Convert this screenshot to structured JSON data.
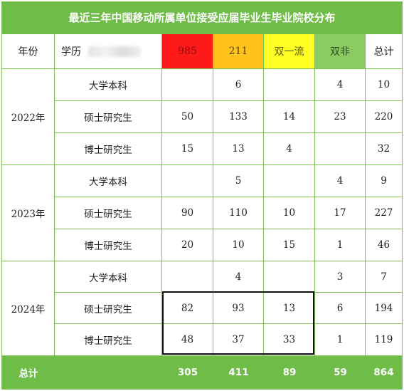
{
  "title": "最近三年中国移动所属单位接受应届毕业生毕业院校分布",
  "headers": {
    "year": "年份",
    "degree": "学历",
    "c985": "985",
    "c211": "211",
    "dual": "双一流",
    "nondual": "双非",
    "total": "总计"
  },
  "colors": {
    "accent_green": "#6fbd48",
    "c985": "#ff1a1a",
    "c211": "#ffc21a",
    "dual": "#ffff24",
    "nondual": "#8ccb64",
    "highlight_border": "#111111"
  },
  "groups": [
    {
      "year": "2022年",
      "rows": [
        {
          "degree": "大学本科",
          "c985": "",
          "c211": "6",
          "dual": "",
          "nondual": "4",
          "total": "10"
        },
        {
          "degree": "硕士研究生",
          "c985": "50",
          "c211": "133",
          "dual": "14",
          "nondual": "23",
          "total": "220"
        },
        {
          "degree": "博士研究生",
          "c985": "15",
          "c211": "13",
          "dual": "4",
          "nondual": "",
          "total": "32"
        }
      ]
    },
    {
      "year": "2023年",
      "rows": [
        {
          "degree": "大学本科",
          "c985": "",
          "c211": "5",
          "dual": "",
          "nondual": "4",
          "total": "9"
        },
        {
          "degree": "硕士研究生",
          "c985": "90",
          "c211": "110",
          "dual": "10",
          "nondual": "17",
          "total": "227"
        },
        {
          "degree": "博士研究生",
          "c985": "20",
          "c211": "10",
          "dual": "15",
          "nondual": "1",
          "total": "46"
        }
      ]
    },
    {
      "year": "2024年",
      "rows": [
        {
          "degree": "大学本科",
          "c985": "",
          "c211": "4",
          "dual": "",
          "nondual": "3",
          "total": "7"
        },
        {
          "degree": "硕士研究生",
          "c985": "82",
          "c211": "93",
          "dual": "13",
          "nondual": "6",
          "total": "194"
        },
        {
          "degree": "博士研究生",
          "c985": "48",
          "c211": "37",
          "dual": "33",
          "nondual": "1",
          "total": "119"
        }
      ]
    }
  ],
  "footer": {
    "label": "总计",
    "c985": "305",
    "c211": "411",
    "dual": "89",
    "nondual": "59",
    "total": "864"
  }
}
